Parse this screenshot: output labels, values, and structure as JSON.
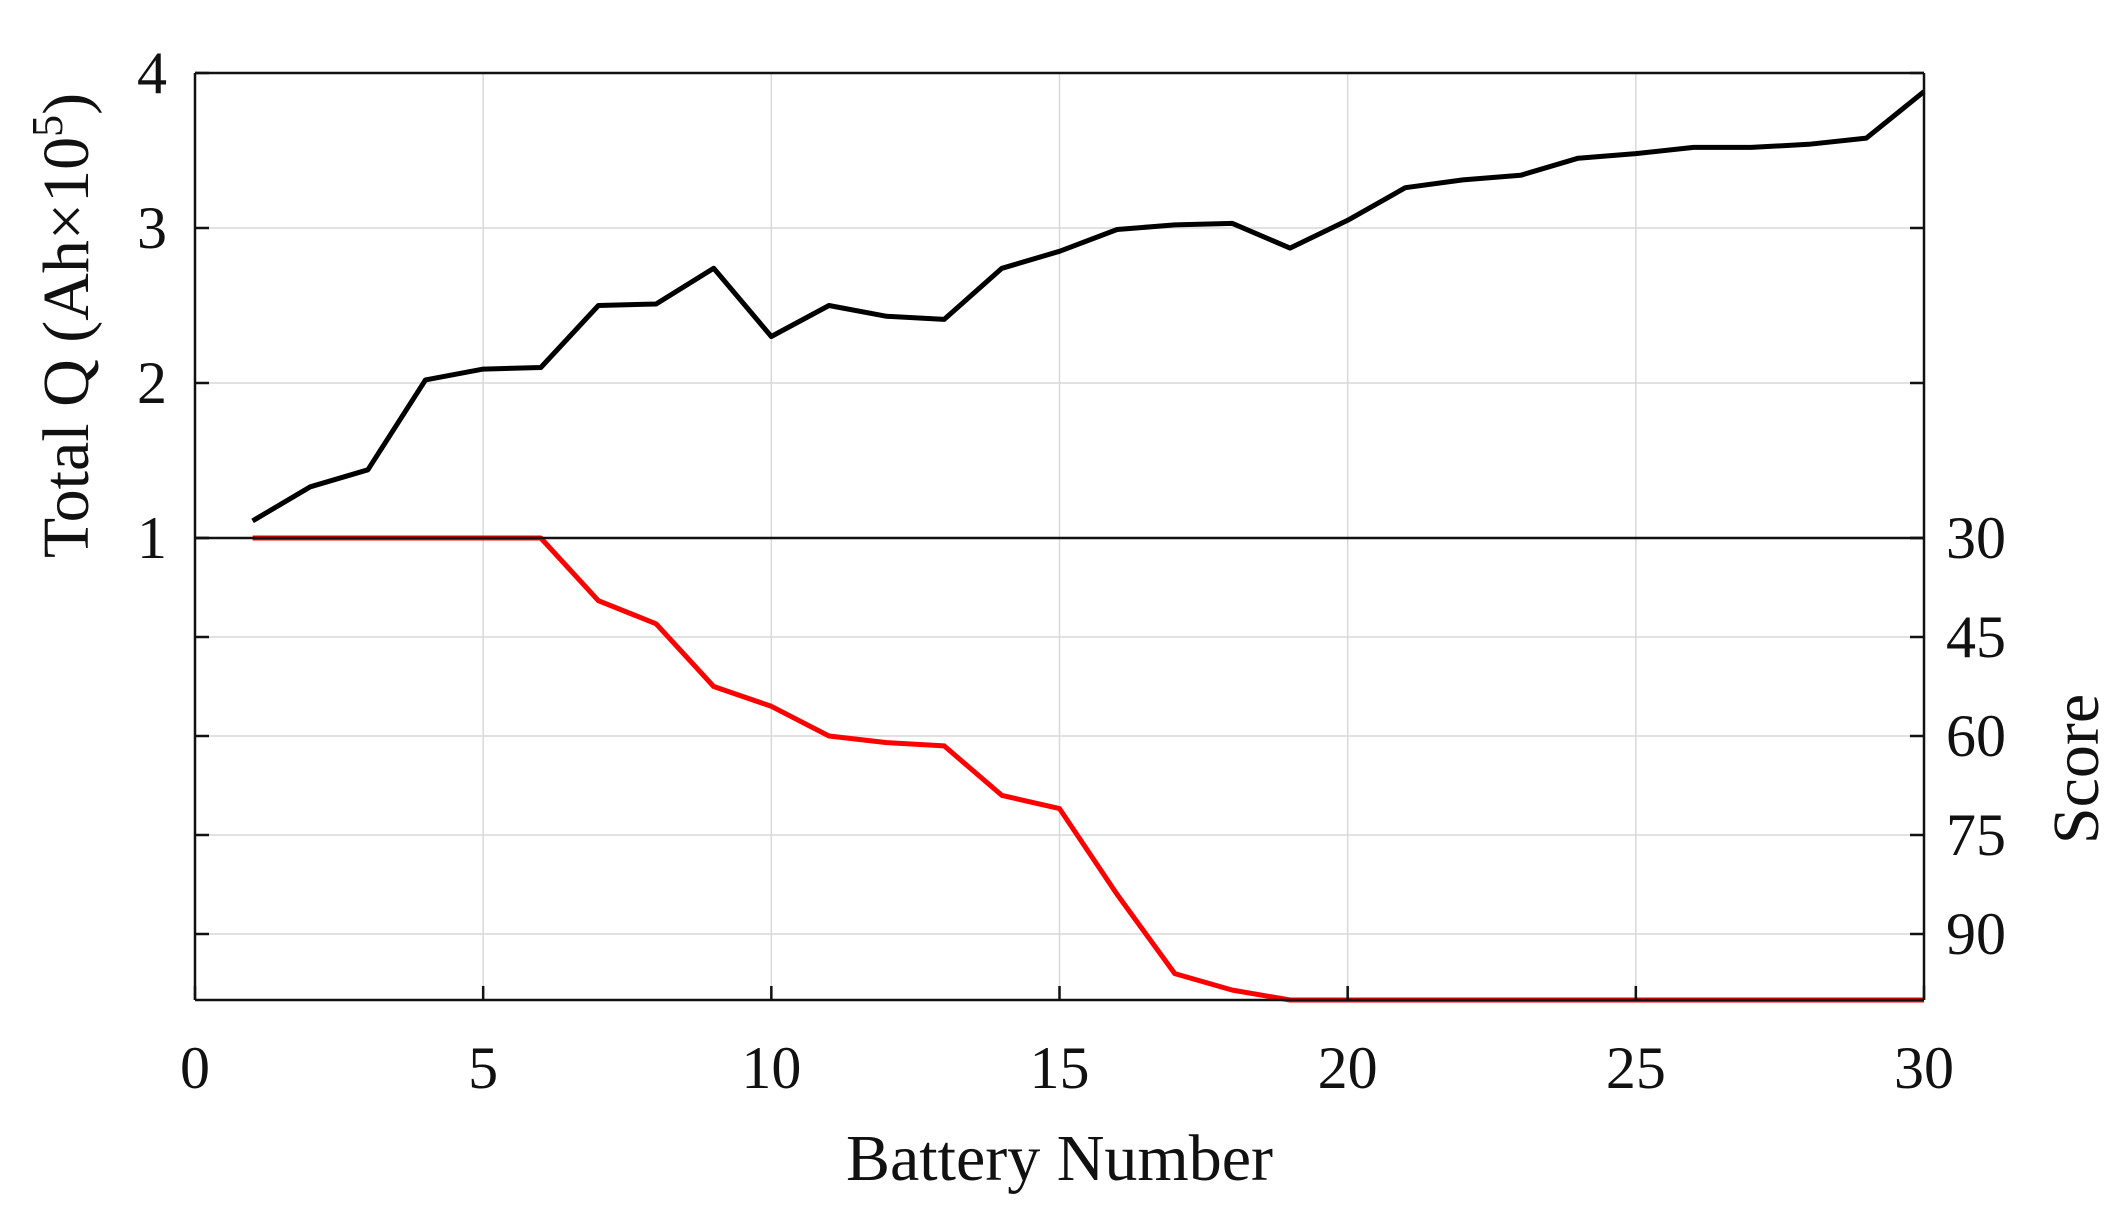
{
  "chart_data": {
    "type": "line",
    "xlabel": "Battery Number",
    "xlim": [
      0,
      30
    ],
    "xticks": [
      0,
      5,
      10,
      15,
      20,
      25,
      30
    ],
    "grid": true,
    "top_panel": {
      "ylabel": "Total Q (Ah×10",
      "ylabel_superscript": "5",
      "ylabel_suffix": ")",
      "ylim": [
        1,
        4
      ],
      "yticks": [
        1,
        2,
        3,
        4
      ],
      "series": [
        {
          "color": "#000000",
          "x": [
            1,
            2,
            3,
            4,
            5,
            6,
            7,
            8,
            9,
            10,
            11,
            12,
            13,
            14,
            15,
            16,
            17,
            18,
            19,
            20,
            21,
            22,
            23,
            24,
            25,
            26,
            27,
            28,
            29,
            30
          ],
          "values": [
            1.11,
            1.33,
            1.44,
            2.02,
            2.09,
            2.1,
            2.5,
            2.51,
            2.74,
            2.3,
            2.5,
            2.43,
            2.41,
            2.74,
            2.85,
            2.99,
            3.02,
            3.03,
            2.87,
            3.05,
            3.26,
            3.31,
            3.34,
            3.45,
            3.48,
            3.52,
            3.52,
            3.54,
            3.58,
            3.88
          ]
        }
      ]
    },
    "bottom_panel": {
      "ylabel": "Score",
      "y_axis_side": "right",
      "y_inverted": true,
      "ylim": [
        30,
        100
      ],
      "yticks": [
        30,
        45,
        60,
        75,
        90
      ],
      "series": [
        {
          "color": "#ff0000",
          "x": [
            1,
            2,
            3,
            4,
            5,
            6,
            7,
            8,
            9,
            10,
            11,
            12,
            13,
            14,
            15,
            16,
            17,
            18,
            19,
            20,
            21,
            22,
            23,
            24,
            25,
            26,
            27,
            28,
            29,
            30
          ],
          "values": [
            30,
            30,
            30,
            30,
            30,
            30,
            39.5,
            43,
            52.5,
            55.5,
            60,
            61,
            61.5,
            69,
            71,
            84,
            96,
            98.5,
            100,
            100,
            100,
            100,
            100,
            100,
            100,
            100,
            100,
            100,
            100,
            100
          ]
        }
      ]
    }
  }
}
